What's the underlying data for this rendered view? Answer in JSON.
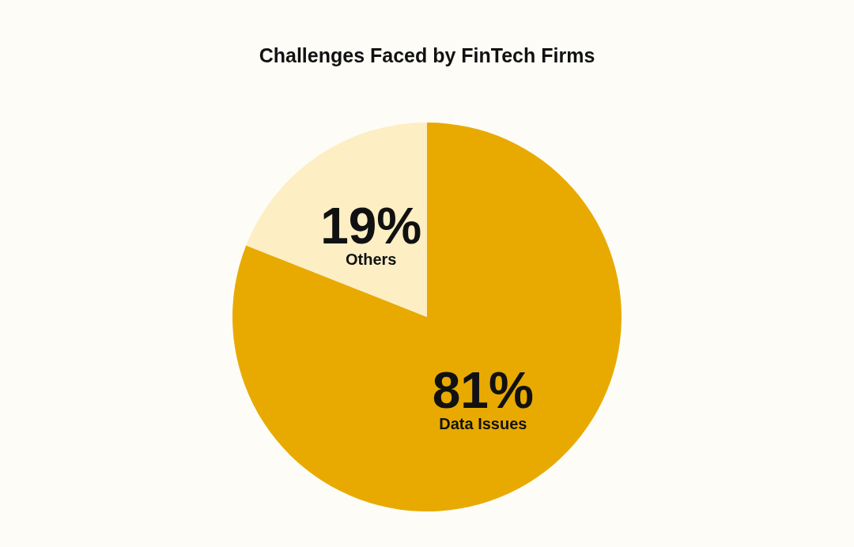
{
  "chart_data": {
    "type": "pie",
    "title": "Challenges Faced by FinTech Firms",
    "categories": [
      "Data Issues",
      "Others"
    ],
    "values": [
      81,
      19
    ],
    "value_labels": [
      "81%",
      "19%"
    ],
    "colors": [
      "#e8aa00",
      "#fdeec3"
    ],
    "legend": false
  }
}
